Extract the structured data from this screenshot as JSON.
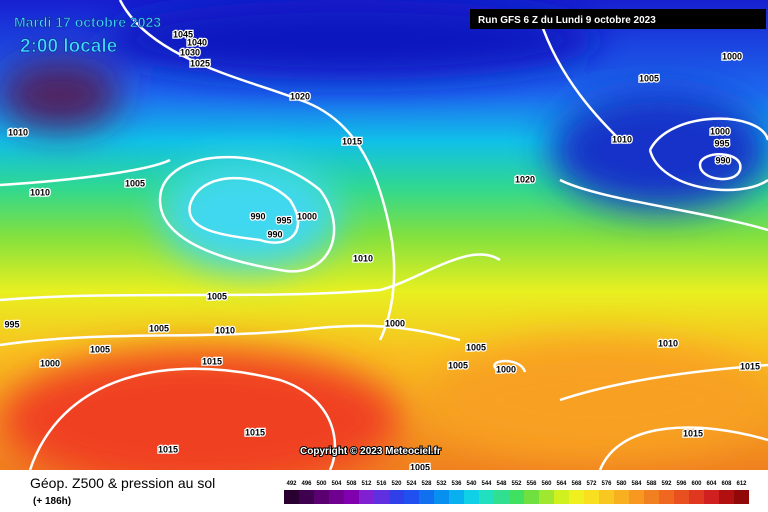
{
  "header": {
    "date": "Mardi 17 octobre 2023",
    "time": "2:00 locale",
    "run": "Run GFS 6 Z du Lundi 9 octobre 2023"
  },
  "isobar_labels": [
    1045,
    1040,
    1030,
    1025,
    1020,
    1015,
    1010,
    1005,
    1010,
    990,
    995,
    1000,
    990,
    1010,
    1005,
    995,
    1005,
    1010,
    1000,
    1005,
    1000,
    1015,
    1005,
    1005,
    1000,
    1015,
    1015,
    1005,
    1005,
    1000,
    1010,
    1000,
    995,
    990,
    1020,
    1010,
    1015,
    1015
  ],
  "copyright": "Copyright © 2023 Meteociel.fr",
  "footer": {
    "title": "Géop. Z500 & pression au sol",
    "lead": "(+ 186h)"
  },
  "scale": [
    492,
    496,
    500,
    504,
    508,
    512,
    516,
    520,
    524,
    528,
    532,
    536,
    540,
    544,
    548,
    552,
    556,
    560,
    564,
    568,
    572,
    576,
    580,
    584,
    588,
    592,
    596,
    600,
    604,
    608,
    612
  ]
}
